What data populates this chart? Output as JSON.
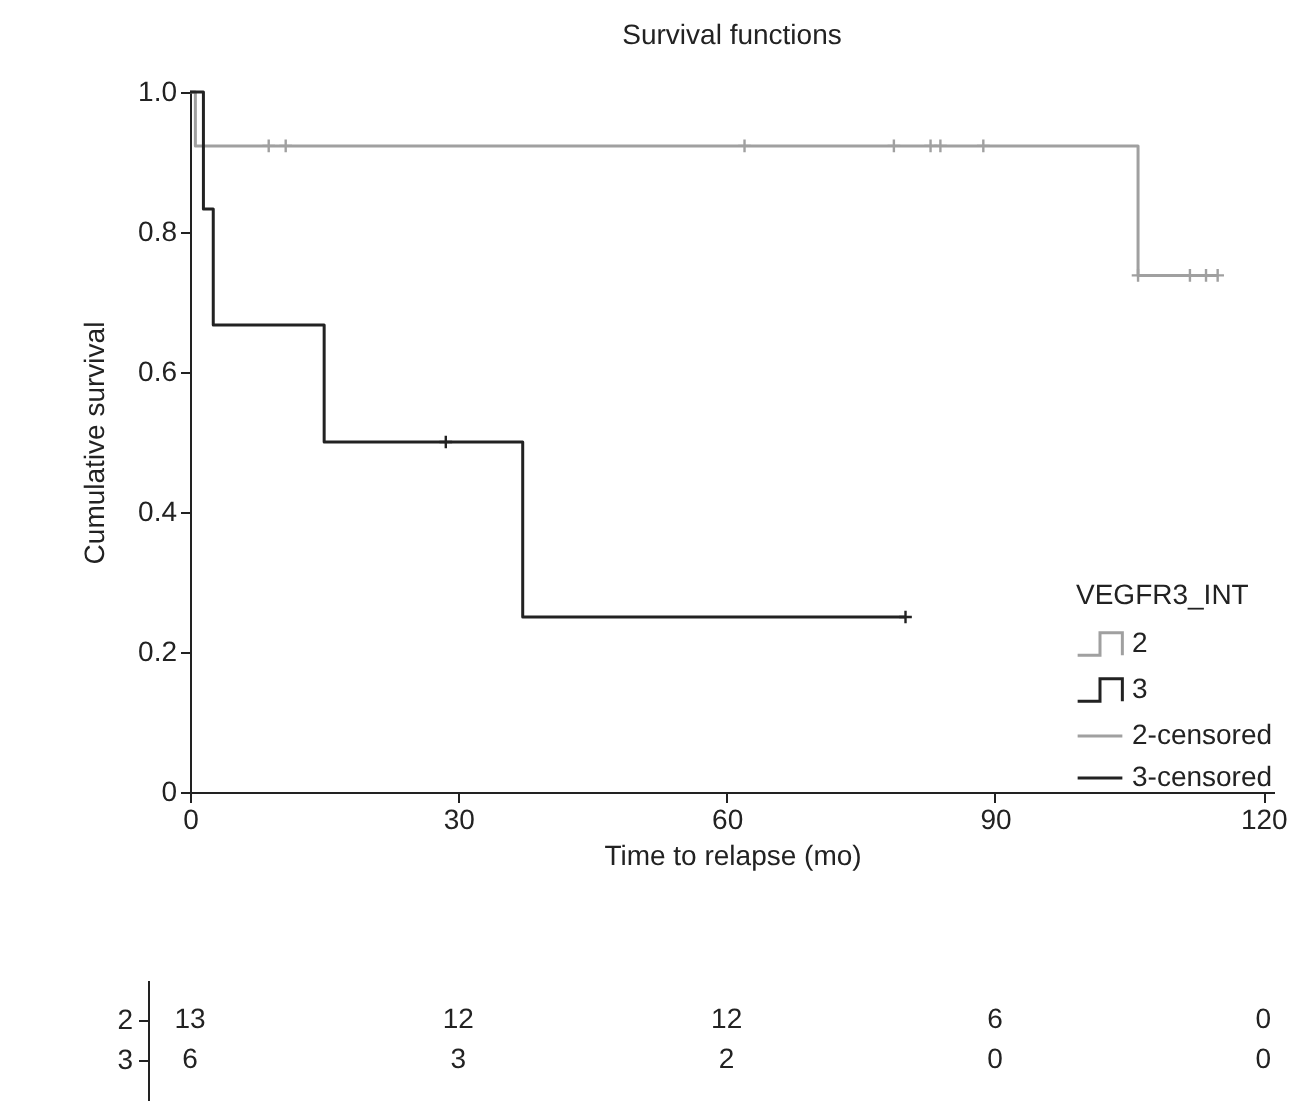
{
  "chart_data": [
    {
      "type": "step",
      "title": "Survival functions",
      "xlabel": "Time to relapse (mo)",
      "ylabel": "Cumulative survival",
      "legend_title": "VEGFR3_INT",
      "legend": "bottom right",
      "grid": false,
      "xlim": [
        0,
        121.2
      ],
      "xticks": [
        0,
        30,
        60,
        90,
        120
      ],
      "ylim": [
        0,
        1
      ],
      "yticks": [
        0,
        {
          "value": 0.2,
          "label": "0.2"
        },
        {
          "value": 0.4,
          "label": "0.4"
        },
        {
          "value": 0.6,
          "label": "0.6"
        },
        {
          "value": 0.8,
          "label": "0.8"
        },
        {
          "value": 1,
          "label": "1.0"
        }
      ],
      "series": [
        {
          "name": "2",
          "type": "step",
          "color": "#a0a0a0",
          "x": [
            0,
            0.6,
            106,
            114.9
          ],
          "values": [
            1,
            0.923,
            0.738,
            0.738
          ]
        },
        {
          "name": "3",
          "type": "step",
          "color": "#222222",
          "x": [
            0,
            1.5,
            2.6,
            15,
            37.2,
            80
          ],
          "values": [
            1,
            0.833,
            0.667,
            0.5,
            0.25,
            0.25
          ]
        },
        {
          "name": "2-censored",
          "type": "scatter",
          "marker": "cross",
          "color": "#a0a0a0",
          "x": [
            8.8,
            10.7,
            62,
            78.7,
            82.8,
            83.9,
            88.7,
            106,
            111.8,
            113.6,
            114.9
          ],
          "values": [
            0.923,
            0.923,
            0.923,
            0.923,
            0.923,
            0.923,
            0.923,
            0.738,
            0.738,
            0.738,
            0.738
          ]
        },
        {
          "name": "3-censored",
          "type": "scatter",
          "marker": "cross",
          "color": "#222222",
          "x": [
            28.6,
            80
          ],
          "values": [
            0.5,
            0.25
          ]
        }
      ]
    },
    {
      "type": "other",
      "categories": [
        null,
        null,
        null,
        null,
        null
      ],
      "y_categories": [
        "2",
        "3"
      ],
      "cell_labels": [
        [
          "13",
          "12",
          "12",
          "6",
          "0"
        ],
        [
          "6",
          "3",
          "2",
          "0",
          "0"
        ]
      ]
    }
  ]
}
